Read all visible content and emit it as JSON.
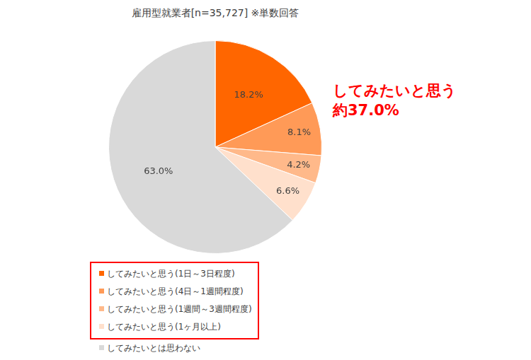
{
  "chart_data": {
    "type": "pie",
    "title": "雇用型就業者[n=35,727] ※単数回答",
    "categories": [
      "してみたいと思う(1日～3日程度)",
      "してみたいと思う(4日～1週間程度)",
      "してみたいと思う(1週間～3週間程度)",
      "してみたいと思う(1ヶ月以上)",
      "してみたいとは思わない"
    ],
    "values": [
      18.2,
      8.1,
      4.2,
      6.6,
      63.0
    ],
    "value_labels": [
      "18.2%",
      "8.1%",
      "4.2%",
      "6.6%",
      "63.0%"
    ],
    "colors": [
      "#ff6600",
      "#ff9a57",
      "#ffb98a",
      "#ffe0cc",
      "#d9d9d9"
    ],
    "data_labels": true,
    "legend": "bottom",
    "annotation": [
      "してみたいと思う",
      "約37.0%"
    ]
  }
}
